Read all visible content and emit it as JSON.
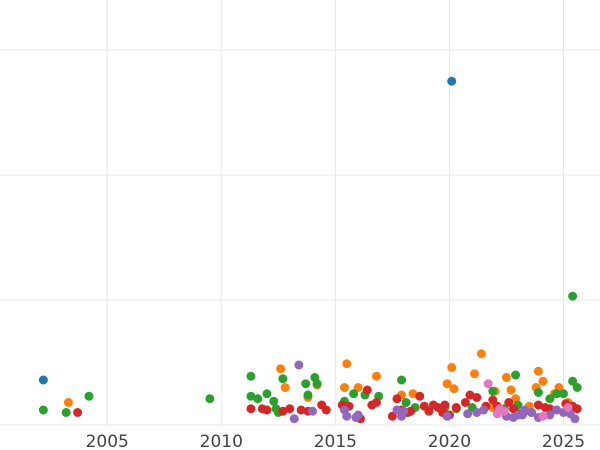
{
  "chart_data": {
    "type": "scatter",
    "title": "",
    "xlabel": "",
    "ylabel": "",
    "xlim": [
      2000.3,
      2026.6
    ],
    "ylim": [
      0,
      3.4
    ],
    "grid": true,
    "legend": "none",
    "x_ticks": [
      "2005",
      "2010",
      "2015",
      "2020",
      "2025"
    ],
    "y_gridlines": [
      0,
      1,
      2,
      3
    ],
    "colors": {
      "blue": "#1f77b4",
      "orange": "#ff7f0e",
      "green": "#2ca02c",
      "red": "#d62728",
      "purple": "#9467bd",
      "pink": "#e377c2"
    },
    "series": [
      {
        "color": "blue",
        "points": [
          [
            2002.2,
            0.36
          ],
          [
            2020.1,
            2.75
          ]
        ]
      },
      {
        "color": "orange",
        "points": [
          [
            2003.3,
            0.18
          ],
          [
            2012.6,
            0.45
          ],
          [
            2012.8,
            0.3
          ],
          [
            2013.8,
            0.22
          ],
          [
            2014.2,
            0.32
          ],
          [
            2015.4,
            0.3
          ],
          [
            2015.5,
            0.49
          ],
          [
            2016.0,
            0.3
          ],
          [
            2016.8,
            0.39
          ],
          [
            2017.9,
            0.24
          ],
          [
            2018.4,
            0.25
          ],
          [
            2019.9,
            0.33
          ],
          [
            2020.1,
            0.46
          ],
          [
            2020.2,
            0.29
          ],
          [
            2021.1,
            0.41
          ],
          [
            2021.4,
            0.57
          ],
          [
            2022.0,
            0.27
          ],
          [
            2022.5,
            0.38
          ],
          [
            2022.7,
            0.28
          ],
          [
            2022.9,
            0.21
          ],
          [
            2023.5,
            0.15
          ],
          [
            2023.8,
            0.3
          ],
          [
            2023.9,
            0.43
          ],
          [
            2024.1,
            0.35
          ],
          [
            2024.6,
            0.25
          ],
          [
            2024.8,
            0.3
          ],
          [
            2025.2,
            0.18
          ],
          [
            2021.9,
            0.14
          ]
        ]
      },
      {
        "color": "green",
        "points": [
          [
            2002.2,
            0.12
          ],
          [
            2003.2,
            0.1
          ],
          [
            2004.2,
            0.23
          ],
          [
            2009.5,
            0.21
          ],
          [
            2011.3,
            0.39
          ],
          [
            2011.3,
            0.23
          ],
          [
            2011.6,
            0.21
          ],
          [
            2012.0,
            0.25
          ],
          [
            2012.3,
            0.19
          ],
          [
            2012.4,
            0.13
          ],
          [
            2012.5,
            0.1
          ],
          [
            2012.7,
            0.37
          ],
          [
            2013.7,
            0.33
          ],
          [
            2013.8,
            0.24
          ],
          [
            2014.1,
            0.38
          ],
          [
            2014.2,
            0.33
          ],
          [
            2015.4,
            0.19
          ],
          [
            2015.8,
            0.25
          ],
          [
            2016.3,
            0.24
          ],
          [
            2016.9,
            0.23
          ],
          [
            2017.9,
            0.36
          ],
          [
            2018.1,
            0.18
          ],
          [
            2018.2,
            0.1
          ],
          [
            2018.5,
            0.14
          ],
          [
            2019.8,
            0.14
          ],
          [
            2020.3,
            0.13
          ],
          [
            2021.0,
            0.14
          ],
          [
            2022.4,
            0.13
          ],
          [
            2022.9,
            0.4
          ],
          [
            2023.0,
            0.16
          ],
          [
            2023.9,
            0.26
          ],
          [
            2024.4,
            0.21
          ],
          [
            2024.7,
            0.25
          ],
          [
            2025.0,
            0.25
          ],
          [
            2025.4,
            1.03
          ],
          [
            2025.4,
            0.35
          ],
          [
            2025.6,
            0.3
          ],
          [
            2021.9,
            0.27
          ]
        ]
      },
      {
        "color": "red",
        "points": [
          [
            2003.7,
            0.1
          ],
          [
            2011.3,
            0.13
          ],
          [
            2011.8,
            0.13
          ],
          [
            2012.0,
            0.12
          ],
          [
            2012.7,
            0.11
          ],
          [
            2013.0,
            0.13
          ],
          [
            2013.5,
            0.12
          ],
          [
            2013.8,
            0.11
          ],
          [
            2014.4,
            0.16
          ],
          [
            2014.6,
            0.12
          ],
          [
            2015.3,
            0.16
          ],
          [
            2015.6,
            0.15
          ],
          [
            2016.1,
            0.05
          ],
          [
            2016.4,
            0.28
          ],
          [
            2016.6,
            0.16
          ],
          [
            2016.8,
            0.18
          ],
          [
            2017.5,
            0.07
          ],
          [
            2017.7,
            0.21
          ],
          [
            2017.9,
            0.12
          ],
          [
            2018.1,
            0.1
          ],
          [
            2018.3,
            0.11
          ],
          [
            2018.7,
            0.23
          ],
          [
            2018.9,
            0.15
          ],
          [
            2019.1,
            0.11
          ],
          [
            2019.3,
            0.16
          ],
          [
            2019.5,
            0.14
          ],
          [
            2019.8,
            0.16
          ],
          [
            2020.0,
            0.08
          ],
          [
            2020.3,
            0.14
          ],
          [
            2020.7,
            0.18
          ],
          [
            2020.9,
            0.24
          ],
          [
            2021.2,
            0.22
          ],
          [
            2021.6,
            0.15
          ],
          [
            2021.9,
            0.2
          ],
          [
            2022.3,
            0.12
          ],
          [
            2022.6,
            0.18
          ],
          [
            2022.8,
            0.13
          ],
          [
            2023.0,
            0.09
          ],
          [
            2023.3,
            0.11
          ],
          [
            2023.6,
            0.1
          ],
          [
            2023.9,
            0.16
          ],
          [
            2024.2,
            0.14
          ],
          [
            2024.4,
            0.13
          ],
          [
            2024.7,
            0.12
          ],
          [
            2025.1,
            0.17
          ],
          [
            2025.4,
            0.15
          ],
          [
            2025.6,
            0.13
          ],
          [
            2022.1,
            0.15
          ],
          [
            2019.7,
            0.1
          ]
        ]
      },
      {
        "color": "purple",
        "points": [
          [
            2013.2,
            0.05
          ],
          [
            2013.4,
            0.48
          ],
          [
            2014.0,
            0.11
          ],
          [
            2015.4,
            0.12
          ],
          [
            2015.5,
            0.07
          ],
          [
            2015.9,
            0.06
          ],
          [
            2016.0,
            0.08
          ],
          [
            2017.7,
            0.12
          ],
          [
            2017.9,
            0.07
          ],
          [
            2018.0,
            0.11
          ],
          [
            2019.9,
            0.07
          ],
          [
            2020.8,
            0.09
          ],
          [
            2021.2,
            0.1
          ],
          [
            2021.5,
            0.12
          ],
          [
            2022.2,
            0.11
          ],
          [
            2022.5,
            0.07
          ],
          [
            2022.8,
            0.06
          ],
          [
            2023.0,
            0.08
          ],
          [
            2023.3,
            0.12
          ],
          [
            2023.6,
            0.1
          ],
          [
            2023.9,
            0.06
          ],
          [
            2024.4,
            0.08
          ],
          [
            2024.7,
            0.12
          ],
          [
            2025.0,
            0.1
          ],
          [
            2025.3,
            0.09
          ],
          [
            2025.5,
            0.05
          ],
          [
            2023.2,
            0.08
          ]
        ]
      },
      {
        "color": "pink",
        "points": [
          [
            2021.7,
            0.33
          ],
          [
            2022.1,
            0.09
          ],
          [
            2022.4,
            0.11
          ],
          [
            2024.1,
            0.07
          ],
          [
            2025.2,
            0.14
          ],
          [
            2022.2,
            0.13
          ]
        ]
      }
    ]
  }
}
